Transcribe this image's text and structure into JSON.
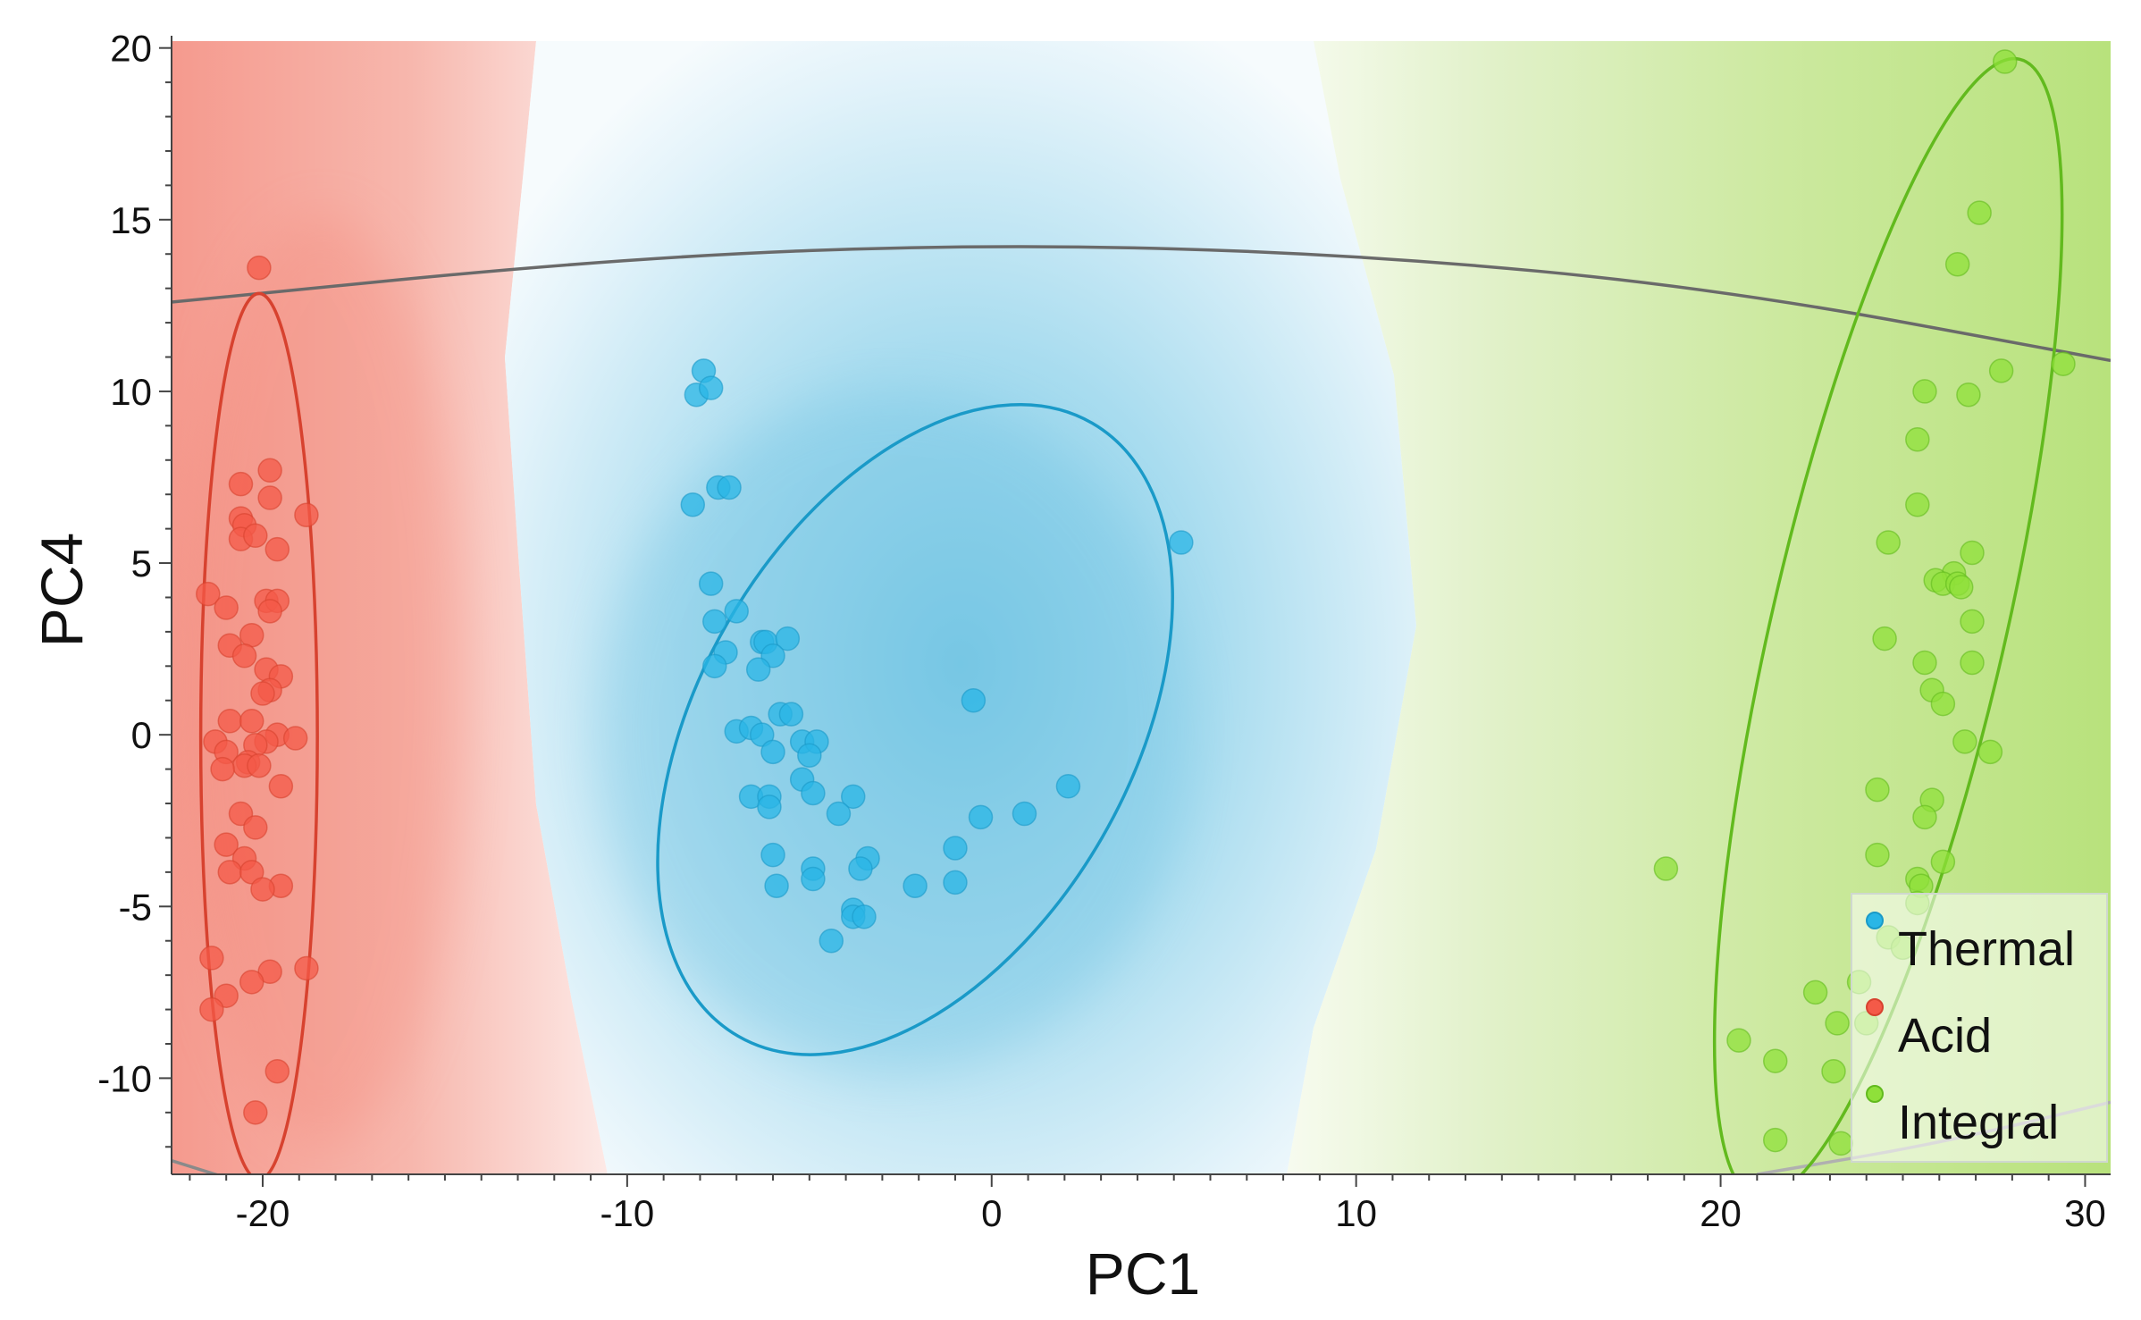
{
  "chart_data": {
    "type": "scatter",
    "title": "",
    "xlabel": "PC1",
    "ylabel": "PC4",
    "xlim": [
      -22.5,
      30.7
    ],
    "ylim": [
      -12.8,
      20.2
    ],
    "xticks": [
      -20,
      -10,
      0,
      10,
      20,
      30
    ],
    "yticks": [
      -10,
      -5,
      0,
      5,
      10,
      15,
      20
    ],
    "xtick_labels": [
      "-20",
      "-10",
      "0",
      "10",
      "20",
      "30"
    ],
    "ytick_labels": [
      "-10",
      "-5",
      "0",
      "5",
      "10",
      "15",
      "20"
    ],
    "legend_position": "bottom-right",
    "series": [
      {
        "name": "Thermal",
        "color": "#29b6e6",
        "stroke": "#1a9ac8",
        "ellipse": {
          "cx": -2.1,
          "cy": 0.15,
          "rx": 10.0,
          "ry": 6.1,
          "angle_deg": 60
        },
        "points": [
          [
            -7.9,
            10.6
          ],
          [
            -8.1,
            9.9
          ],
          [
            -7.7,
            10.1
          ],
          [
            -7.5,
            7.2
          ],
          [
            -7.2,
            7.2
          ],
          [
            -8.2,
            6.7
          ],
          [
            -7.7,
            4.4
          ],
          [
            -7.0,
            3.6
          ],
          [
            -7.6,
            3.3
          ],
          [
            -6.3,
            2.7
          ],
          [
            -6.2,
            2.7
          ],
          [
            -5.6,
            2.8
          ],
          [
            -7.3,
            2.4
          ],
          [
            -6.0,
            2.3
          ],
          [
            -7.6,
            2.0
          ],
          [
            -6.4,
            1.9
          ],
          [
            -0.5,
            1.0
          ],
          [
            -5.8,
            0.6
          ],
          [
            -5.5,
            0.6
          ],
          [
            -7.0,
            0.1
          ],
          [
            -6.6,
            0.2
          ],
          [
            -6.3,
            0.0
          ],
          [
            -5.2,
            -0.2
          ],
          [
            -4.8,
            -0.2
          ],
          [
            -6.0,
            -0.5
          ],
          [
            -5.0,
            -0.6
          ],
          [
            -6.6,
            -1.8
          ],
          [
            -6.1,
            -1.8
          ],
          [
            -5.2,
            -1.3
          ],
          [
            -4.9,
            -1.7
          ],
          [
            -3.8,
            -1.8
          ],
          [
            -6.1,
            -2.1
          ],
          [
            -4.2,
            -2.3
          ],
          [
            -0.3,
            -2.4
          ],
          [
            0.9,
            -2.3
          ],
          [
            2.1,
            -1.5
          ],
          [
            -1.0,
            -3.3
          ],
          [
            -6.0,
            -3.5
          ],
          [
            -3.4,
            -3.6
          ],
          [
            -4.9,
            -3.9
          ],
          [
            -3.6,
            -3.9
          ],
          [
            -4.9,
            -4.2
          ],
          [
            -5.9,
            -4.4
          ],
          [
            -2.1,
            -4.4
          ],
          [
            -1.0,
            -4.3
          ],
          [
            -3.8,
            -5.1
          ],
          [
            -3.8,
            -5.3
          ],
          [
            -3.5,
            -5.3
          ],
          [
            -4.4,
            -6.0
          ],
          [
            5.2,
            5.6
          ]
        ]
      },
      {
        "name": "Acid",
        "color": "#f45a48",
        "stroke": "#d7422f",
        "ellipse": {
          "cx": -20.1,
          "cy": -0.05,
          "rx": 1.6,
          "ry": 12.9,
          "angle_deg": 0
        },
        "points": [
          [
            -20.1,
            13.6
          ],
          [
            -19.8,
            7.7
          ],
          [
            -20.6,
            7.3
          ],
          [
            -18.8,
            6.4
          ],
          [
            -19.8,
            6.9
          ],
          [
            -20.6,
            6.3
          ],
          [
            -20.5,
            6.1
          ],
          [
            -20.6,
            5.7
          ],
          [
            -19.6,
            5.4
          ],
          [
            -20.2,
            5.8
          ],
          [
            -21.5,
            4.1
          ],
          [
            -19.9,
            3.9
          ],
          [
            -19.6,
            3.9
          ],
          [
            -21.0,
            3.7
          ],
          [
            -19.8,
            3.6
          ],
          [
            -20.3,
            2.9
          ],
          [
            -20.9,
            2.6
          ],
          [
            -20.5,
            2.3
          ],
          [
            -19.9,
            1.9
          ],
          [
            -19.5,
            1.7
          ],
          [
            -19.8,
            1.3
          ],
          [
            -20.0,
            1.2
          ],
          [
            -20.9,
            0.4
          ],
          [
            -20.3,
            0.4
          ],
          [
            -21.3,
            -0.2
          ],
          [
            -19.6,
            0.0
          ],
          [
            -19.9,
            -0.2
          ],
          [
            -19.1,
            -0.1
          ],
          [
            -20.2,
            -0.3
          ],
          [
            -21.0,
            -0.5
          ],
          [
            -20.4,
            -0.8
          ],
          [
            -20.5,
            -0.9
          ],
          [
            -20.1,
            -0.9
          ],
          [
            -21.1,
            -1.0
          ],
          [
            -19.5,
            -1.5
          ],
          [
            -20.6,
            -2.3
          ],
          [
            -20.2,
            -2.7
          ],
          [
            -21.0,
            -3.2
          ],
          [
            -20.5,
            -3.6
          ],
          [
            -20.9,
            -4.0
          ],
          [
            -20.3,
            -4.0
          ],
          [
            -19.5,
            -4.4
          ],
          [
            -20.0,
            -4.5
          ],
          [
            -21.4,
            -6.5
          ],
          [
            -18.8,
            -6.8
          ],
          [
            -19.8,
            -6.9
          ],
          [
            -20.3,
            -7.2
          ],
          [
            -21.0,
            -7.6
          ],
          [
            -21.4,
            -8.0
          ],
          [
            -19.6,
            -9.8
          ],
          [
            -20.2,
            -11.0
          ]
        ]
      },
      {
        "name": "Integral",
        "color": "#8fe03a",
        "stroke": "#62ba1e",
        "ellipse": {
          "cx": 24.6,
          "cy": 3.1,
          "rx": 3.3,
          "ry": 16.5,
          "angle_deg": -13
        },
        "points": [
          [
            27.8,
            19.6
          ],
          [
            27.1,
            15.2
          ],
          [
            26.5,
            13.7
          ],
          [
            29.4,
            10.8
          ],
          [
            27.7,
            10.6
          ],
          [
            25.6,
            10.0
          ],
          [
            26.8,
            9.9
          ],
          [
            25.4,
            8.6
          ],
          [
            25.4,
            6.7
          ],
          [
            24.6,
            5.6
          ],
          [
            26.9,
            5.3
          ],
          [
            26.4,
            4.7
          ],
          [
            25.9,
            4.5
          ],
          [
            26.1,
            4.4
          ],
          [
            26.5,
            4.4
          ],
          [
            26.6,
            4.3
          ],
          [
            26.9,
            3.3
          ],
          [
            24.5,
            2.8
          ],
          [
            25.6,
            2.1
          ],
          [
            26.9,
            2.1
          ],
          [
            25.8,
            1.3
          ],
          [
            26.1,
            0.9
          ],
          [
            26.7,
            -0.2
          ],
          [
            27.4,
            -0.5
          ],
          [
            24.3,
            -1.6
          ],
          [
            25.8,
            -1.9
          ],
          [
            25.6,
            -2.4
          ],
          [
            18.5,
            -3.9
          ],
          [
            24.3,
            -3.5
          ],
          [
            26.1,
            -3.7
          ],
          [
            25.4,
            -4.2
          ],
          [
            25.5,
            -4.4
          ],
          [
            25.4,
            -4.9
          ],
          [
            24.6,
            -5.9
          ],
          [
            25.0,
            -6.2
          ],
          [
            23.8,
            -7.2
          ],
          [
            22.6,
            -7.5
          ],
          [
            23.2,
            -8.4
          ],
          [
            24.0,
            -8.4
          ],
          [
            20.5,
            -8.9
          ],
          [
            21.5,
            -9.5
          ],
          [
            23.1,
            -9.8
          ],
          [
            21.5,
            -11.8
          ],
          [
            23.3,
            -11.9
          ]
        ]
      }
    ],
    "gray_curves": [
      {
        "name": "upper-boundary",
        "points": [
          [
            -22.5,
            12.6
          ],
          [
            -10,
            13.9
          ],
          [
            0,
            14.3
          ],
          [
            10,
            14.0
          ],
          [
            20,
            13.0
          ],
          [
            30.7,
            10.9
          ]
        ],
        "color": "#6a6a6a"
      },
      {
        "name": "lower-boundary",
        "points": [
          [
            -22.5,
            -12.4
          ],
          [
            -21,
            -12.9
          ]
        ],
        "color": "#8a8a8a"
      },
      {
        "name": "lower-boundary-right",
        "points": [
          [
            21,
            -12.8
          ],
          [
            26,
            -11.9
          ],
          [
            30.7,
            -10.7
          ]
        ],
        "color": "#b0b0b0"
      }
    ]
  }
}
